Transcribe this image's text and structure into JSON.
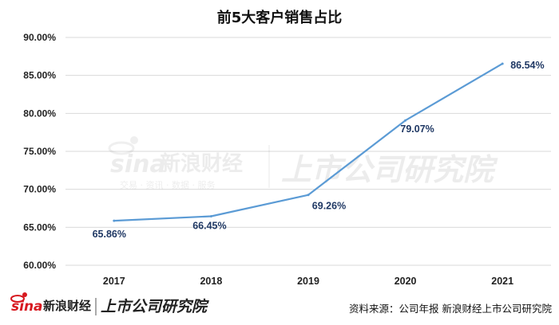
{
  "chart_data": {
    "type": "line",
    "title": "前5大客户销售占比",
    "xlabel": "",
    "ylabel": "",
    "categories": [
      "2017",
      "2018",
      "2019",
      "2020",
      "2021"
    ],
    "series": [
      {
        "values": [
          65.86,
          66.45,
          69.26,
          79.07,
          86.54
        ]
      }
    ],
    "data_labels": [
      "65.86%",
      "66.45%",
      "69.26%",
      "79.07%",
      "86.54%"
    ],
    "ylim": [
      60,
      90
    ],
    "y_ticks": [
      60,
      65,
      70,
      75,
      80,
      85,
      90
    ],
    "y_tick_labels": [
      "60.00%",
      "65.00%",
      "70.00%",
      "75.00%",
      "80.00%",
      "85.00%",
      "90.00%"
    ],
    "grid": true,
    "line_color": "#5b9bd5"
  },
  "watermark": {
    "logo": "sina",
    "brand": "新浪财经",
    "tagline": "交易 · 资讯 · 数据 · 服务",
    "institute": "上市公司研究院"
  },
  "footer": {
    "logo": "sina",
    "brand": "新浪财经",
    "institute": "上市公司研究院",
    "source": "资料来源：公司年报 新浪财经上市公司研究院"
  }
}
